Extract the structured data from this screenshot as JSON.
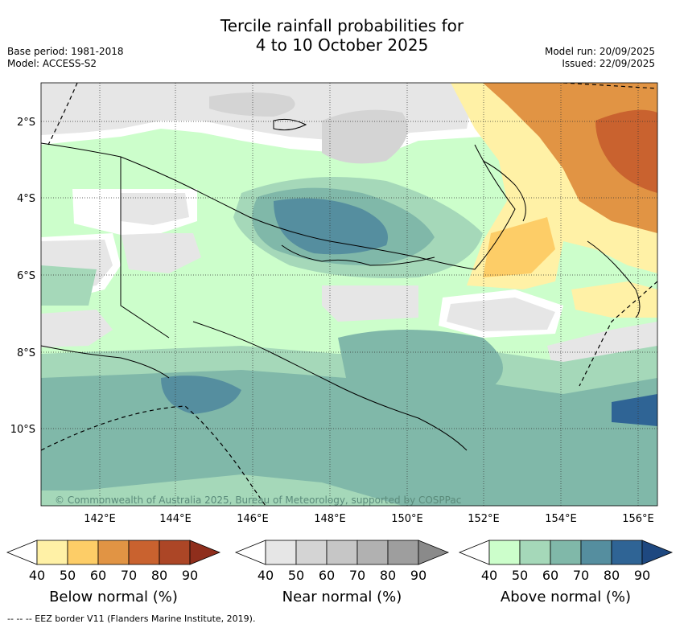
{
  "title": {
    "line1": "Tercile rainfall probabilities for",
    "line2": "4 to 10 October 2025"
  },
  "meta_left": {
    "base_period": "Base period: 1981-2018",
    "model": "Model: ACCESS-S2"
  },
  "meta_right": {
    "model_run": "Model run: 20/09/2025",
    "issued": "Issued: 22/09/2025"
  },
  "map": {
    "lat_labels": [
      "2°S",
      "4°S",
      "6°S",
      "8°S",
      "10°S"
    ],
    "lon_labels": [
      "142°E",
      "144°E",
      "146°E",
      "148°E",
      "150°E",
      "152°E",
      "154°E",
      "156°E"
    ],
    "copyright": "© Commonwealth of Australia 2025, Bureau of Meteorology, supported by COSPPac"
  },
  "colorbars": [
    {
      "label": "Below normal (%)",
      "ticks": [
        "40",
        "50",
        "60",
        "70",
        "80",
        "90"
      ],
      "colors": [
        "#ffffff",
        "#fff1a6",
        "#fdcd67",
        "#e19444",
        "#c9622f",
        "#ac4626",
        "#8f2e1c"
      ]
    },
    {
      "label": "Near normal (%)",
      "ticks": [
        "40",
        "50",
        "60",
        "70",
        "80",
        "90"
      ],
      "colors": [
        "#ffffff",
        "#e6e6e6",
        "#d4d4d4",
        "#c6c6c6",
        "#b1b1b1",
        "#9e9e9e",
        "#8a8a8a"
      ]
    },
    {
      "label": "Above normal (%)",
      "ticks": [
        "40",
        "50",
        "60",
        "70",
        "80",
        "90"
      ],
      "colors": [
        "#ffffff",
        "#ccfecb",
        "#a5d8b9",
        "#80b8a9",
        "#558e9f",
        "#2f6495",
        "#1e4880"
      ]
    }
  ],
  "footnote": "--  --  -- EEZ border V11 (Flanders Marine Institute, 2019)."
}
